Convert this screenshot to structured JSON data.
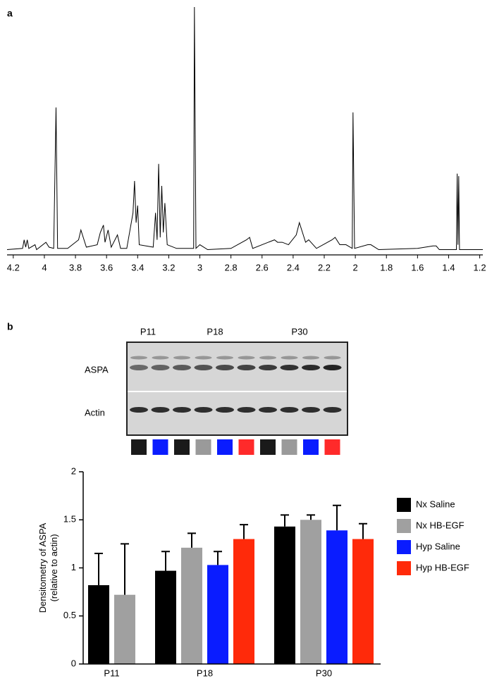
{
  "chart_data": [
    {
      "type": "line",
      "panel_label": "a",
      "color": "#000000",
      "x": [
        4.24,
        4.14,
        4.13,
        4.12,
        4.11,
        4.1,
        4.06,
        4.05,
        3.99,
        3.97,
        3.94,
        3.925,
        3.915,
        3.85,
        3.78,
        3.765,
        3.75,
        3.73,
        3.66,
        3.64,
        3.62,
        3.61,
        3.59,
        3.57,
        3.53,
        3.51,
        3.47,
        3.43,
        3.42,
        3.41,
        3.4,
        3.39,
        3.3,
        3.285,
        3.275,
        3.265,
        3.255,
        3.245,
        3.235,
        3.225,
        3.21,
        3.15,
        3.04,
        3.035,
        3.025,
        3.0,
        2.95,
        2.8,
        2.7,
        2.68,
        2.66,
        2.52,
        2.5,
        2.47,
        2.43,
        2.38,
        2.36,
        2.34,
        2.32,
        2.3,
        2.25,
        2.15,
        2.13,
        2.1,
        2.06,
        2.02,
        2.015,
        2.005,
        1.92,
        1.9,
        1.85,
        1.6,
        1.5,
        1.48,
        1.46,
        1.35,
        1.345,
        1.34,
        1.335,
        1.33,
        1.25,
        1.18
      ],
      "values": [
        1,
        1.5,
        5,
        2,
        5,
        1.5,
        3,
        1,
        4,
        2,
        1.5,
        59,
        1.5,
        1.5,
        5,
        9,
        6,
        2,
        3,
        8,
        11,
        4,
        9,
        2,
        7,
        1.5,
        1.5,
        16,
        29,
        12,
        19,
        3,
        2,
        16,
        5,
        36,
        6,
        27,
        8,
        20,
        3,
        1.5,
        1.5,
        100,
        1.5,
        3,
        1,
        1.5,
        5,
        6,
        1.5,
        5,
        4,
        4,
        3,
        7,
        12,
        8,
        4,
        5,
        1.5,
        5,
        6,
        3,
        3,
        1.5,
        57,
        1.5,
        3,
        3,
        1,
        1.5,
        2.5,
        2.5,
        1,
        1,
        32,
        3,
        31,
        1,
        1,
        1
      ],
      "xlim": [
        4.24,
        1.18
      ],
      "xticks": [
        4.2,
        4.0,
        3.8,
        3.6,
        3.4,
        3.2,
        3.0,
        2.8,
        2.6,
        2.4,
        2.2,
        2.0,
        1.8,
        1.6,
        1.4,
        1.2
      ],
      "ylim": [
        0,
        100
      ]
    },
    {
      "type": "bar",
      "panel_label": "b",
      "ylabel": [
        "Densitometry of ASPA",
        "(relative to actin)"
      ],
      "categories": [
        "P11",
        "P18",
        "P30"
      ],
      "series": [
        {
          "name": "Nx Saline",
          "color": "#000000",
          "values": [
            0.82,
            0.97,
            1.43
          ],
          "errors": [
            0.33,
            0.2,
            0.12
          ]
        },
        {
          "name": "Nx HB-EGF",
          "color": "#a0a0a0",
          "values": [
            0.72,
            1.21,
            1.5
          ],
          "errors": [
            0.53,
            0.15,
            0.05
          ]
        },
        {
          "name": "Hyp Saline",
          "color": "#0a1cff",
          "values": [
            null,
            1.03,
            1.39
          ],
          "errors": [
            null,
            0.14,
            0.26
          ]
        },
        {
          "name": "Hyp HB-EGF",
          "color": "#ff2a0a",
          "values": [
            null,
            1.3,
            1.3
          ],
          "errors": [
            null,
            0.15,
            0.16
          ]
        }
      ],
      "ylim": [
        0,
        2
      ],
      "yticks": [
        0,
        0.5,
        1,
        1.5,
        2
      ]
    }
  ],
  "blot": {
    "groups": [
      "P11",
      "P18",
      "P30"
    ],
    "rows": [
      "ASPA",
      "Actin"
    ],
    "lane_colors": [
      "#1a1a1a",
      "#0a1cff",
      "#1a1a1a",
      "#9a9a9a",
      "#0a1cff",
      "#ff2a2a",
      "#1a1a1a",
      "#9a9a9a",
      "#0a1cff",
      "#ff2a2a"
    ]
  }
}
